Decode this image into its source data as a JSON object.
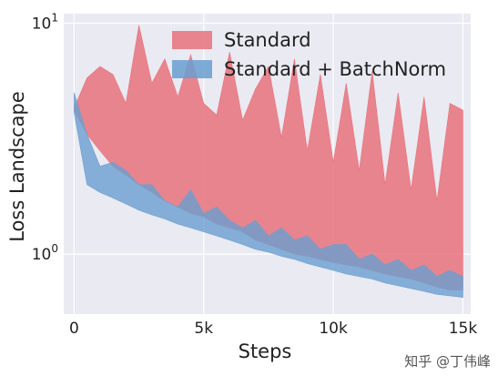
{
  "chart_data": {
    "type": "area",
    "xlabel": "Steps",
    "ylabel": "Loss Landscape",
    "xlim": [
      -400,
      15300
    ],
    "ylim": [
      0.55,
      11.0
    ],
    "yscale": "log",
    "x_ticks": [
      {
        "value": 0,
        "label": "0"
      },
      {
        "value": 5000,
        "label": "5k"
      },
      {
        "value": 10000,
        "label": "10k"
      },
      {
        "value": 15000,
        "label": "15k"
      }
    ],
    "y_ticks": [
      {
        "value": 1,
        "base": "10",
        "exp": "0"
      },
      {
        "value": 10,
        "base": "10",
        "exp": "1"
      }
    ],
    "grid": true,
    "legend_position": "top-right",
    "series": [
      {
        "name": "Standard",
        "color": "#e8727d",
        "x": [
          0,
          500,
          1000,
          1500,
          2000,
          2500,
          3000,
          3500,
          4000,
          4500,
          5000,
          5500,
          6000,
          6500,
          7000,
          7500,
          8000,
          8500,
          9000,
          9500,
          10000,
          10500,
          11000,
          11500,
          12000,
          12500,
          13000,
          13500,
          14000,
          14500,
          15000
        ],
        "upper": [
          4.3,
          5.8,
          6.5,
          6.0,
          4.5,
          9.8,
          5.5,
          7.0,
          4.8,
          7.3,
          4.5,
          4.0,
          7.5,
          3.8,
          5.2,
          6.5,
          3.2,
          7.0,
          2.8,
          6.0,
          2.5,
          5.5,
          2.3,
          6.2,
          2.0,
          5.0,
          1.9,
          4.8,
          1.7,
          4.5,
          4.2
        ],
        "lower": [
          4.2,
          3.3,
          2.8,
          2.4,
          2.2,
          2.0,
          1.85,
          1.7,
          1.6,
          1.5,
          1.45,
          1.35,
          1.3,
          1.25,
          1.15,
          1.1,
          1.05,
          1.0,
          0.98,
          0.95,
          0.92,
          0.9,
          0.88,
          0.85,
          0.82,
          0.8,
          0.78,
          0.75,
          0.72,
          0.7,
          0.7
        ]
      },
      {
        "name": "Standard + BatchNorm",
        "color": "#6a9fd0",
        "x": [
          0,
          500,
          1000,
          1500,
          2000,
          2500,
          3000,
          3500,
          4000,
          4500,
          5000,
          5500,
          6000,
          6500,
          7000,
          7500,
          8000,
          8500,
          9000,
          9500,
          10000,
          10500,
          11000,
          11500,
          12000,
          12500,
          13000,
          13500,
          14000,
          14500,
          15000
        ],
        "upper": [
          5.0,
          3.3,
          2.4,
          2.5,
          2.3,
          2.0,
          2.0,
          1.7,
          1.6,
          1.9,
          1.5,
          1.6,
          1.4,
          1.3,
          1.4,
          1.2,
          1.3,
          1.15,
          1.2,
          1.05,
          1.1,
          1.1,
          0.95,
          1.0,
          0.9,
          0.95,
          0.85,
          0.9,
          0.8,
          0.85,
          0.8
        ],
        "lower": [
          4.1,
          2.0,
          1.85,
          1.75,
          1.65,
          1.55,
          1.48,
          1.42,
          1.35,
          1.3,
          1.25,
          1.2,
          1.15,
          1.1,
          1.05,
          1.02,
          0.98,
          0.95,
          0.91,
          0.88,
          0.85,
          0.82,
          0.8,
          0.78,
          0.75,
          0.73,
          0.71,
          0.69,
          0.67,
          0.66,
          0.65
        ]
      }
    ]
  },
  "watermark": "知乎 @丁伟峰"
}
